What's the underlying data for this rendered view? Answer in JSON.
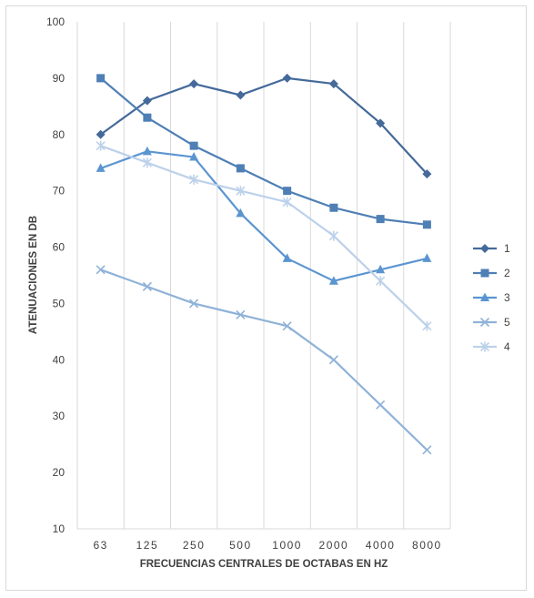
{
  "chart_data": {
    "type": "line",
    "title": "",
    "xlabel": "FRECUENCIAS CENTRALES DE OCTABAS EN HZ",
    "ylabel": "ATENUACIONES EN DB",
    "categories": [
      "63",
      "125",
      "250",
      "500",
      "1000",
      "2000",
      "4000",
      "8000"
    ],
    "ylim": [
      10,
      100
    ],
    "yticks": [
      10,
      20,
      30,
      40,
      50,
      60,
      70,
      80,
      90,
      100
    ],
    "grid": "vertical",
    "legend": "right",
    "series": [
      {
        "name": "1",
        "values": [
          80,
          86,
          89,
          87,
          90,
          89,
          82,
          73
        ],
        "color": "#44699a",
        "marker": "diamond"
      },
      {
        "name": "2",
        "values": [
          90,
          83,
          78,
          74,
          70,
          67,
          65,
          64
        ],
        "color": "#4e7fb5",
        "marker": "square"
      },
      {
        "name": "3",
        "values": [
          74,
          77,
          76,
          66,
          58,
          54,
          56,
          58
        ],
        "color": "#5b95d0",
        "marker": "triangle"
      },
      {
        "name": "5",
        "values": [
          56,
          53,
          50,
          48,
          46,
          40,
          32,
          24
        ],
        "color": "#8fb2d8",
        "marker": "x"
      },
      {
        "name": "4",
        "values": [
          78,
          75,
          72,
          70,
          68,
          62,
          54,
          46
        ],
        "color": "#bcd1ea",
        "marker": "star"
      }
    ]
  }
}
